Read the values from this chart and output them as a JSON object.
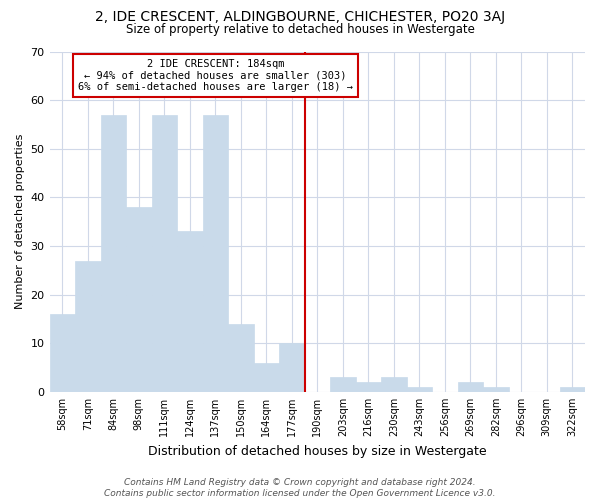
{
  "title": "2, IDE CRESCENT, ALDINGBOURNE, CHICHESTER, PO20 3AJ",
  "subtitle": "Size of property relative to detached houses in Westergate",
  "xlabel": "Distribution of detached houses by size in Westergate",
  "ylabel": "Number of detached properties",
  "bar_labels": [
    "58sqm",
    "71sqm",
    "84sqm",
    "98sqm",
    "111sqm",
    "124sqm",
    "137sqm",
    "150sqm",
    "164sqm",
    "177sqm",
    "190sqm",
    "203sqm",
    "216sqm",
    "230sqm",
    "243sqm",
    "256sqm",
    "269sqm",
    "282sqm",
    "296sqm",
    "309sqm",
    "322sqm"
  ],
  "bar_values": [
    16,
    27,
    57,
    38,
    57,
    33,
    57,
    14,
    6,
    10,
    0,
    3,
    2,
    3,
    1,
    0,
    2,
    1,
    0,
    0,
    1
  ],
  "bar_color": "#c9daea",
  "bar_edge_color": "#c9daea",
  "property_line_x": 10.0,
  "annotation_line1": "2 IDE CRESCENT: 184sqm",
  "annotation_line2": "← 94% of detached houses are smaller (303)",
  "annotation_line3": "6% of semi-detached houses are larger (18) →",
  "annotation_box_color": "#cc0000",
  "ylim": [
    0,
    70
  ],
  "yticks": [
    0,
    10,
    20,
    30,
    40,
    50,
    60,
    70
  ],
  "background_color": "#ffffff",
  "grid_color": "#d0d8e8",
  "footer": "Contains HM Land Registry data © Crown copyright and database right 2024.\nContains public sector information licensed under the Open Government Licence v3.0."
}
